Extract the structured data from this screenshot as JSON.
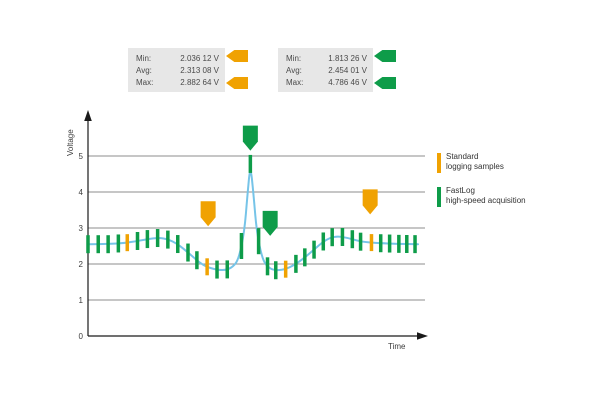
{
  "palette": {
    "orange": "#F0A202",
    "green": "#0E9C49",
    "blue": "#76C4E8",
    "grid": "#8C8C8C",
    "axis": "#1A1A1A",
    "box_bg": "#E7E7E7",
    "text": "#4A4A4A"
  },
  "stat_boxes": [
    {
      "name": "standard-logging-stats",
      "rows": [
        {
          "label": "Min:",
          "value": "2.036 12 V"
        },
        {
          "label": "Avg:",
          "value": "2.313 08 V"
        },
        {
          "label": "Max:",
          "value": "2.882 64 V"
        }
      ]
    },
    {
      "name": "fastlog-stats",
      "rows": [
        {
          "label": "Min:",
          "value": "1.813 26 V"
        },
        {
          "label": "Avg:",
          "value": "2.454 01 V"
        },
        {
          "label": "Max:",
          "value": "4.786 46 V"
        }
      ]
    }
  ],
  "legend": {
    "items": [
      {
        "line1": "Standard",
        "line2": "logging samples",
        "color_key": "orange"
      },
      {
        "line1": "FastLog",
        "line2": "high-speed acquisition",
        "color_key": "green"
      }
    ]
  },
  "chart_data": {
    "type": "line",
    "title": "",
    "xlabel": "Time",
    "ylabel": "Voltage",
    "xlim": [
      0,
      100
    ],
    "ylim": [
      0,
      6
    ],
    "yticks": [
      0,
      1,
      2,
      3,
      4,
      5
    ],
    "grid": true,
    "series": [
      {
        "name": "voltage-signal",
        "color_key": "blue",
        "x": [
          0,
          6.7,
          12.8,
          19,
          22.6,
          26.6,
          31.2,
          34.3,
          37.3,
          41,
          43.4,
          45.6,
          47.4,
          48.3,
          49.2,
          50.2,
          51.1,
          52.9,
          55,
          57.2,
          60.2,
          63.9,
          67.9,
          71.6,
          74.9,
          78.6,
          82.6,
          87.8,
          93.9,
          100
        ],
        "y": [
          2.55,
          2.55,
          2.6,
          2.71,
          2.73,
          2.6,
          2.25,
          2.0,
          1.87,
          1.82,
          1.88,
          2.1,
          2.9,
          3.9,
          4.78,
          3.9,
          2.9,
          2.1,
          1.87,
          1.82,
          1.86,
          2.05,
          2.35,
          2.65,
          2.78,
          2.73,
          2.62,
          2.58,
          2.56,
          2.55
        ]
      }
    ],
    "fastlog_sample_times": [
      0,
      3.1,
      6.1,
      9.2,
      15,
      18,
      21.1,
      24.2,
      27.2,
      30.3,
      33,
      39.1,
      42.2,
      46.5,
      49.2,
      51.7,
      54.4,
      56.9,
      63,
      65.7,
      68.5,
      71.3,
      74,
      77.1,
      80.1,
      82.6,
      88.7,
      91.4,
      94.2,
      96.6,
      99.1
    ],
    "standard_sample_times": [
      11.9,
      36.1,
      59.9,
      85.9
    ],
    "tall_sample_times": [
      46.5,
      51.7
    ],
    "annotations": [
      {
        "name": "fastlog-peak-arrow",
        "color_key": "green",
        "x": 49.2,
        "tip_v": 5.15
      },
      {
        "name": "standard-sample-arrow-left",
        "color_key": "orange",
        "x": 36.4,
        "tip_v": 3.05
      },
      {
        "name": "fastlog-sample-arrow",
        "color_key": "green",
        "x": 55.2,
        "tip_v": 2.78
      },
      {
        "name": "standard-sample-arrow-right",
        "color_key": "orange",
        "x": 85.5,
        "tip_v": 3.38
      }
    ]
  }
}
